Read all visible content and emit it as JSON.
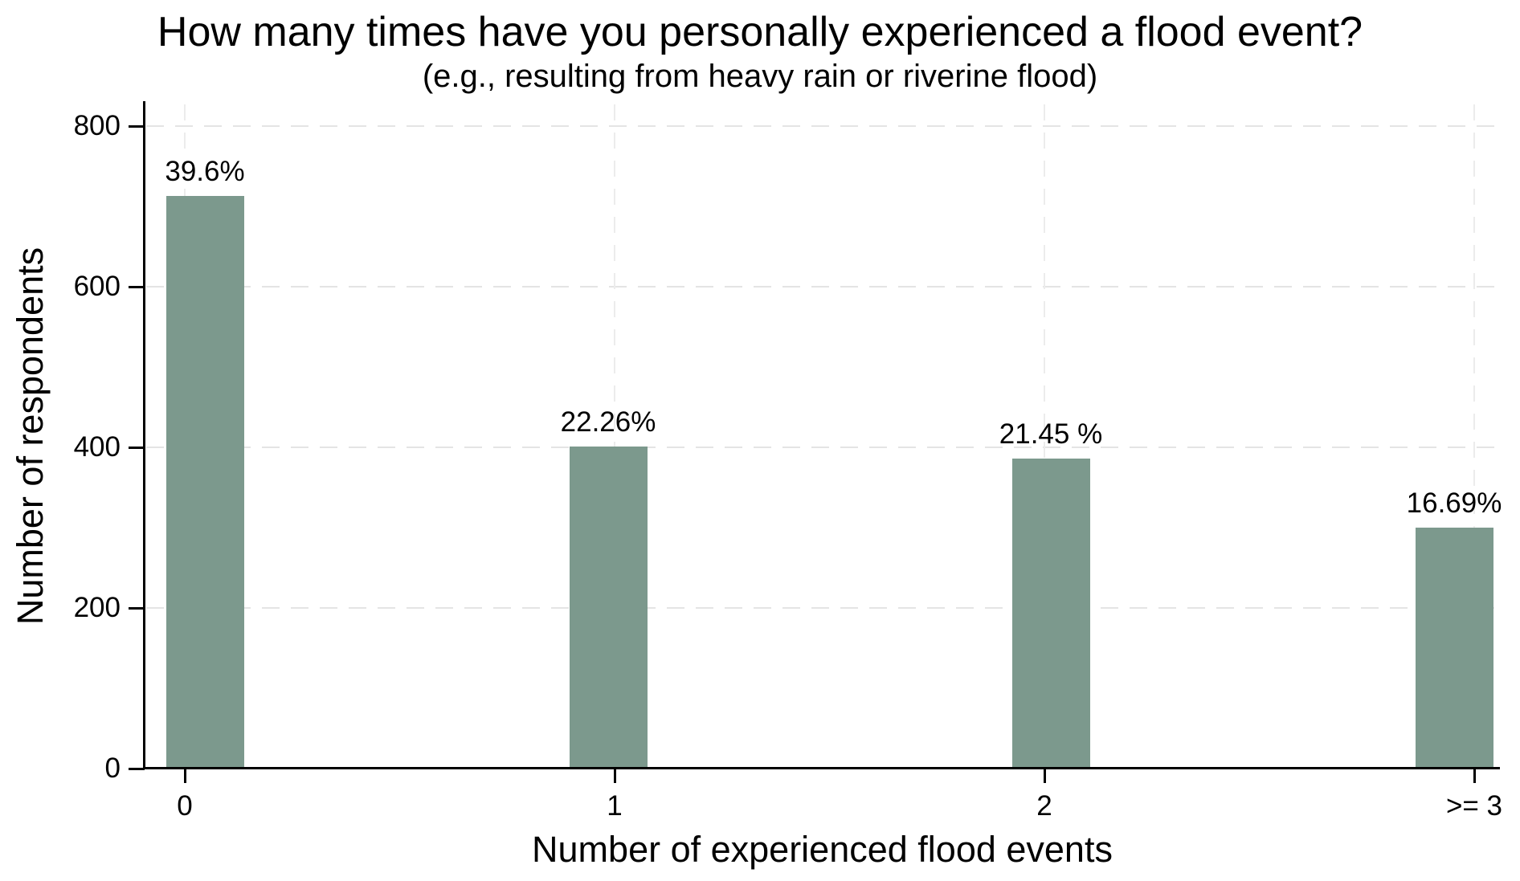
{
  "chart_data": {
    "type": "bar",
    "title": "How many times have you personally experienced a flood event?",
    "subtitle": "(e.g., resulting from heavy rain or riverine flood)",
    "xlabel": "Number of experienced flood events",
    "ylabel": "Number of respondents",
    "categories": [
      "0",
      "1",
      "2",
      ">= 3"
    ],
    "values": [
      713,
      401,
      386,
      300
    ],
    "percent_labels": [
      "39.6%",
      "22.26%",
      "21.45 %",
      "16.69%"
    ],
    "y_ticks": [
      0,
      200,
      400,
      600,
      800
    ],
    "ylim": [
      0,
      830
    ],
    "grid": {
      "horizontal": true,
      "vertical": true,
      "style": "dashed"
    },
    "legend": "none",
    "bar_color": "#7c998d",
    "axis_color": "#000000",
    "gridline_color": "#e4e4e4"
  }
}
